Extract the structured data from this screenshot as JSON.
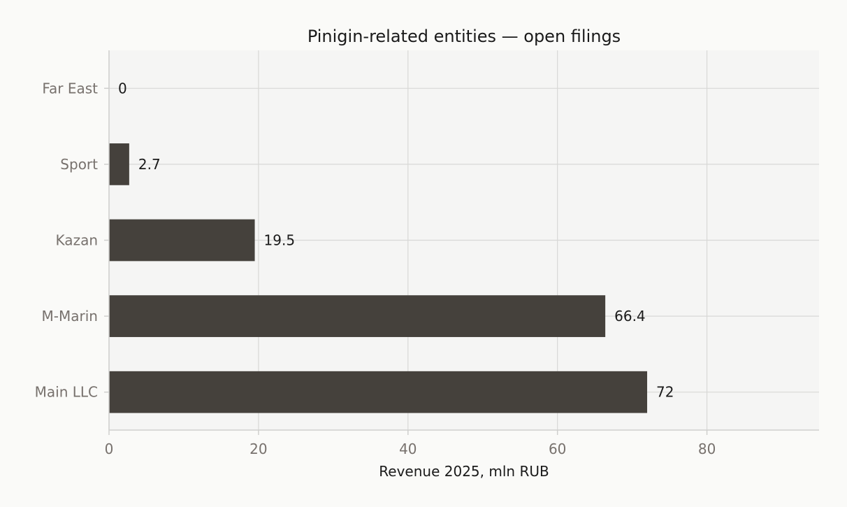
{
  "chart_data": {
    "type": "bar",
    "orientation": "horizontal",
    "title": "Pinigin-related entities — open filings",
    "xlabel": "Revenue 2025, mln RUB",
    "ylabel": "",
    "categories": [
      "Main LLC",
      "M-Marin",
      "Kazan",
      "Sport",
      "Far East"
    ],
    "values": [
      72,
      66.4,
      19.5,
      2.7,
      0
    ],
    "value_labels": [
      "72",
      "66.4",
      "19.5",
      "2.7",
      "0"
    ],
    "xlim": [
      0,
      95
    ],
    "xticks": [
      0,
      20,
      40,
      60,
      80
    ],
    "xtick_labels": [
      "0",
      "20",
      "40",
      "60",
      "80"
    ],
    "grid": true,
    "colors": {
      "bar": "#45413c",
      "plot_background": "#f5f5f4",
      "page_background": "#fafaf8",
      "grid": "#d8d8d6",
      "axis": "#cfcfcd"
    }
  }
}
